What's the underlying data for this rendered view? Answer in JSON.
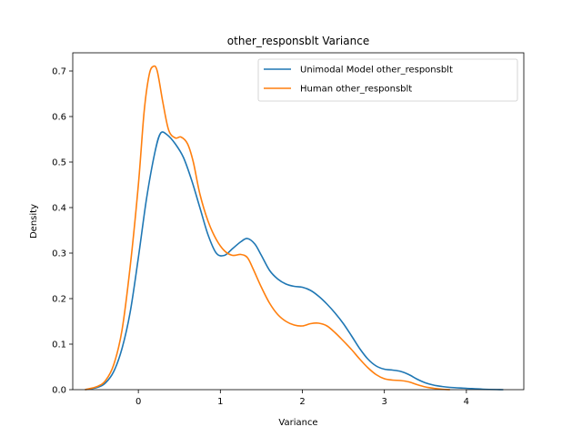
{
  "chart_data": {
    "type": "line",
    "title": "other_responsblt Variance",
    "xlabel": "Variance",
    "ylabel": "Density",
    "xlim": [
      -0.8,
      4.7
    ],
    "ylim": [
      0,
      0.74
    ],
    "xticks": [
      0,
      1,
      2,
      3,
      4
    ],
    "yticks": [
      0.0,
      0.1,
      0.2,
      0.3,
      0.4,
      0.5,
      0.6,
      0.7
    ],
    "grid": false,
    "legend_position": "top-right",
    "series": [
      {
        "name": "Unimodal Model other_responsblt",
        "color": "#1f77b4",
        "x": [
          -0.65,
          -0.5,
          -0.4,
          -0.3,
          -0.2,
          -0.1,
          0.0,
          0.1,
          0.2,
          0.27,
          0.35,
          0.45,
          0.55,
          0.65,
          0.75,
          0.85,
          0.95,
          1.05,
          1.15,
          1.25,
          1.33,
          1.42,
          1.5,
          1.6,
          1.7,
          1.8,
          1.9,
          2.0,
          2.1,
          2.2,
          2.3,
          2.4,
          2.5,
          2.6,
          2.7,
          2.8,
          2.9,
          3.0,
          3.1,
          3.2,
          3.3,
          3.4,
          3.5,
          3.6,
          3.7,
          3.8,
          4.0,
          4.2,
          4.45
        ],
        "y": [
          0.0,
          0.005,
          0.015,
          0.04,
          0.09,
          0.17,
          0.29,
          0.42,
          0.52,
          0.563,
          0.56,
          0.54,
          0.51,
          0.46,
          0.4,
          0.34,
          0.3,
          0.295,
          0.31,
          0.325,
          0.332,
          0.32,
          0.295,
          0.262,
          0.243,
          0.232,
          0.227,
          0.225,
          0.218,
          0.205,
          0.188,
          0.168,
          0.145,
          0.118,
          0.09,
          0.067,
          0.052,
          0.045,
          0.043,
          0.04,
          0.033,
          0.023,
          0.015,
          0.01,
          0.007,
          0.005,
          0.003,
          0.001,
          0.0
        ]
      },
      {
        "name": "Human other_responsblt",
        "color": "#ff7f0e",
        "x": [
          -0.65,
          -0.5,
          -0.4,
          -0.3,
          -0.2,
          -0.1,
          0.0,
          0.07,
          0.13,
          0.18,
          0.23,
          0.3,
          0.37,
          0.45,
          0.52,
          0.6,
          0.67,
          0.75,
          0.85,
          0.95,
          1.05,
          1.15,
          1.25,
          1.33,
          1.4,
          1.5,
          1.6,
          1.7,
          1.8,
          1.9,
          2.0,
          2.1,
          2.2,
          2.3,
          2.4,
          2.5,
          2.6,
          2.7,
          2.8,
          2.9,
          3.0,
          3.1,
          3.2,
          3.3,
          3.4,
          3.5,
          3.6,
          3.7,
          3.8
        ],
        "y": [
          0.0,
          0.007,
          0.02,
          0.055,
          0.13,
          0.27,
          0.45,
          0.61,
          0.69,
          0.71,
          0.7,
          0.63,
          0.57,
          0.553,
          0.555,
          0.54,
          0.5,
          0.43,
          0.37,
          0.33,
          0.305,
          0.295,
          0.297,
          0.29,
          0.265,
          0.225,
          0.19,
          0.165,
          0.15,
          0.142,
          0.14,
          0.145,
          0.146,
          0.14,
          0.125,
          0.107,
          0.088,
          0.067,
          0.048,
          0.033,
          0.024,
          0.021,
          0.02,
          0.017,
          0.011,
          0.006,
          0.003,
          0.001,
          0.0
        ]
      }
    ]
  }
}
